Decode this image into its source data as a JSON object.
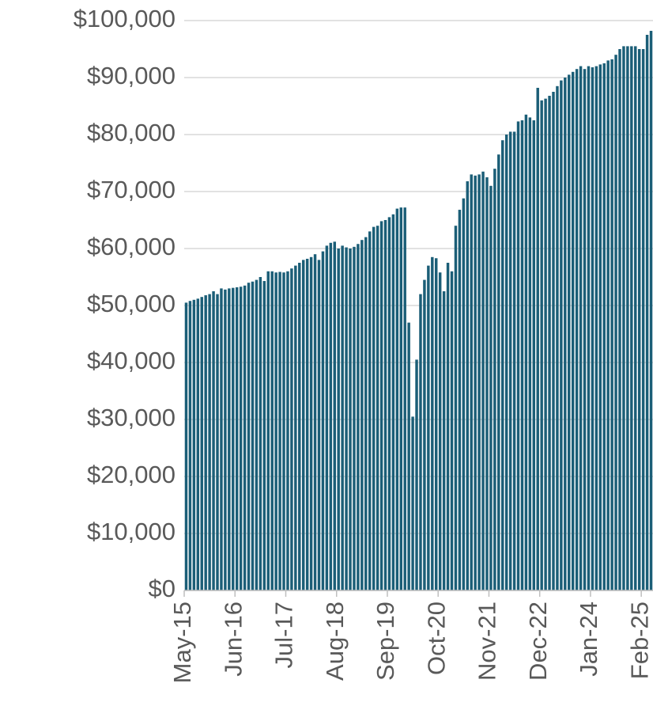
{
  "chart_data": {
    "type": "bar",
    "categories": [
      "May-15",
      null,
      null,
      null,
      null,
      null,
      null,
      null,
      null,
      null,
      null,
      null,
      null,
      "Jun-16",
      null,
      null,
      null,
      null,
      null,
      null,
      null,
      null,
      null,
      null,
      null,
      null,
      "Jul-17",
      null,
      null,
      null,
      null,
      null,
      null,
      null,
      null,
      null,
      null,
      null,
      null,
      "Aug-18",
      null,
      null,
      null,
      null,
      null,
      null,
      null,
      null,
      null,
      null,
      null,
      null,
      "Sep-19",
      null,
      null,
      null,
      null,
      null,
      null,
      null,
      null,
      null,
      null,
      null,
      null,
      "Oct-20",
      null,
      null,
      null,
      null,
      null,
      null,
      null,
      null,
      null,
      null,
      null,
      null,
      "Nov-21",
      null,
      null,
      null,
      null,
      null,
      null,
      null,
      null,
      null,
      null,
      null,
      null,
      "Dec-22",
      null,
      null,
      null,
      null,
      null,
      null,
      null,
      null,
      null,
      null,
      null,
      null,
      "Jan-24",
      null,
      null,
      null,
      null,
      null,
      null,
      null,
      null,
      null,
      null,
      null,
      null,
      "Feb-25",
      null,
      null
    ],
    "values": [
      50500,
      50800,
      51000,
      51200,
      51500,
      51800,
      52000,
      52500,
      52000,
      53000,
      52800,
      53000,
      53100,
      53200,
      53300,
      53500,
      54000,
      54200,
      54500,
      55000,
      54300,
      56000,
      56000,
      55800,
      55900,
      55800,
      56000,
      56500,
      57000,
      57500,
      58000,
      58200,
      58500,
      59000,
      58000,
      59500,
      60500,
      61000,
      61200,
      60000,
      60500,
      60200,
      60000,
      60300,
      60800,
      61500,
      62000,
      63000,
      63800,
      64000,
      64800,
      65000,
      65500,
      66000,
      67000,
      67200,
      67200,
      47000,
      30500,
      40500,
      52000,
      54500,
      57000,
      58500,
      58300,
      55800,
      52500,
      57500,
      56000,
      64000,
      66800,
      68800,
      71800,
      73000,
      72800,
      73000,
      73500,
      72500,
      71000,
      74000,
      76500,
      79000,
      80000,
      80500,
      80500,
      82300,
      82500,
      83500,
      83000,
      82500,
      88200,
      86000,
      86300,
      86800,
      87500,
      88500,
      89500,
      90000,
      90500,
      91000,
      91500,
      92000,
      91500,
      92000,
      91800,
      92000,
      92300,
      92500,
      93000,
      93200,
      94000,
      95000,
      95500,
      95500,
      95500,
      95500,
      95000,
      95000,
      97500,
      98200
    ],
    "color": "#1b5e77",
    "ylim": [
      0,
      100000
    ],
    "yticks": [
      {
        "value": 0,
        "label": "$0"
      },
      {
        "value": 10000,
        "label": "$10,000"
      },
      {
        "value": 20000,
        "label": "$20,000"
      },
      {
        "value": 30000,
        "label": "$30,000"
      },
      {
        "value": 40000,
        "label": "$40,000"
      },
      {
        "value": 50000,
        "label": "$50,000"
      },
      {
        "value": 60000,
        "label": "$60,000"
      },
      {
        "value": 70000,
        "label": "$70,000"
      },
      {
        "value": 80000,
        "label": "$80,000"
      },
      {
        "value": 90000,
        "label": "$90,000"
      },
      {
        "value": 100000,
        "label": "$100,000"
      }
    ],
    "grid": true
  }
}
